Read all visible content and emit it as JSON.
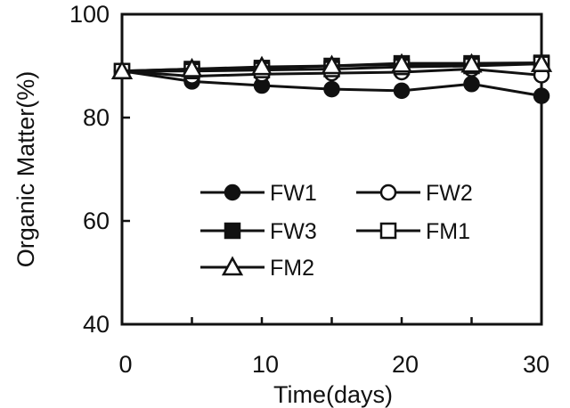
{
  "chart_data": {
    "type": "line",
    "title": "",
    "xlabel": "Time(days)",
    "ylabel": "Organic Matter(%)",
    "xlim": [
      0,
      30
    ],
    "ylim": [
      40,
      100
    ],
    "x_ticks": [
      0,
      10,
      20,
      30
    ],
    "y_ticks": [
      40,
      60,
      80,
      100
    ],
    "x_tick_labels": [
      "0",
      "10",
      "20",
      "30"
    ],
    "y_tick_labels": [
      "40",
      "60",
      "80",
      "100"
    ],
    "grid": false,
    "legend_placement": "center",
    "series": [
      {
        "name": "FW1",
        "marker": "circle-filled",
        "x": [
          0,
          5,
          10,
          15,
          20,
          25,
          30
        ],
        "values": [
          89,
          87,
          86.2,
          85.5,
          85.2,
          86.5,
          84.2
        ]
      },
      {
        "name": "FW2",
        "marker": "circle-open",
        "x": [
          0,
          5,
          10,
          15,
          20,
          25,
          30
        ],
        "values": [
          89,
          88,
          88.4,
          88.6,
          88.8,
          89.4,
          88.2
        ]
      },
      {
        "name": "FW3",
        "marker": "square-filled",
        "x": [
          0,
          5,
          10,
          15,
          20,
          25,
          30
        ],
        "values": [
          89,
          89.4,
          89.6,
          90,
          90.5,
          90.5,
          90.6
        ]
      },
      {
        "name": "FM1",
        "marker": "square-open",
        "x": [
          0,
          5,
          10,
          15,
          20,
          25,
          30
        ],
        "values": [
          89,
          89,
          89.2,
          89.4,
          89.8,
          90,
          90.4
        ]
      },
      {
        "name": "FM2",
        "marker": "triangle-open",
        "x": [
          0,
          5,
          10,
          15,
          20,
          25,
          30
        ],
        "values": [
          89,
          89.4,
          89.8,
          90,
          90.3,
          90.3,
          90.4
        ]
      }
    ]
  }
}
